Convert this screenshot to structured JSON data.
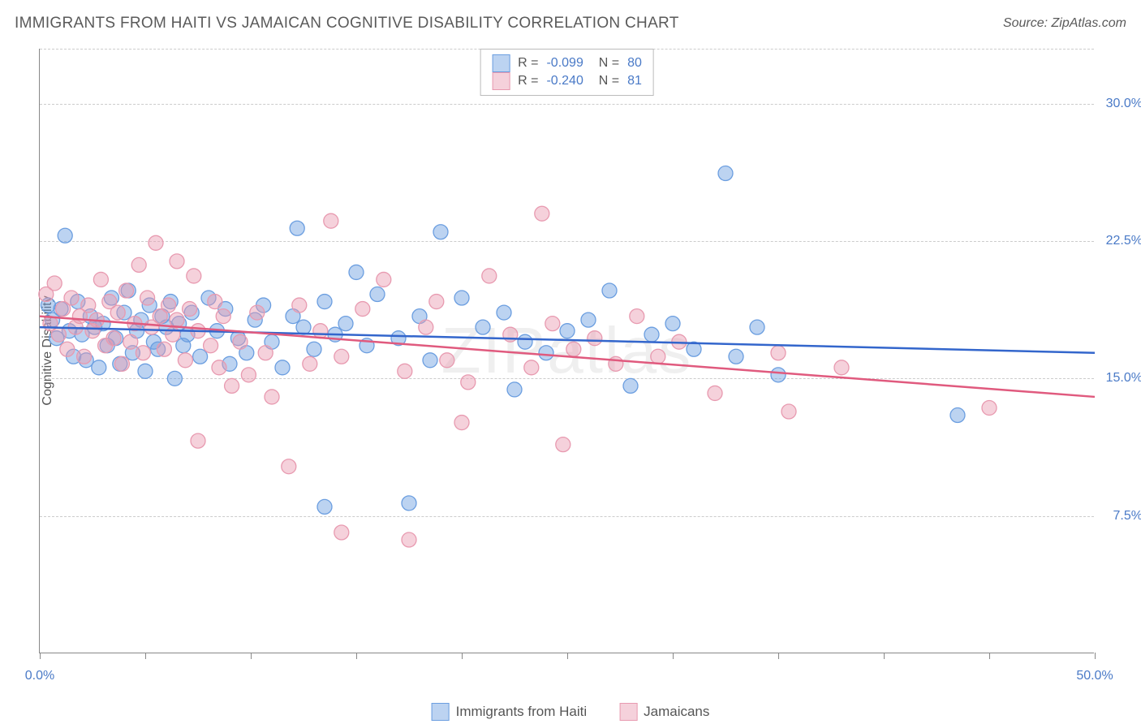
{
  "header": {
    "title": "IMMIGRANTS FROM HAITI VS JAMAICAN COGNITIVE DISABILITY CORRELATION CHART",
    "source": "Source: ZipAtlas.com"
  },
  "watermark": "ZIPatlas",
  "ylabel": "Cognitive Disability",
  "chart": {
    "type": "scatter-with-regression",
    "xlim": [
      0,
      50
    ],
    "ylim": [
      0,
      33
    ],
    "xtick_positions": [
      0,
      5,
      10,
      15,
      20,
      25,
      30,
      35,
      40,
      45,
      50
    ],
    "xtick_labels": {
      "0": "0.0%",
      "50": "50.0%"
    },
    "ytick_positions": [
      7.5,
      15.0,
      22.5,
      30.0
    ],
    "ytick_labels": [
      "7.5%",
      "15.0%",
      "22.5%",
      "30.0%"
    ],
    "background_color": "#ffffff",
    "grid_color": "#cccccc",
    "marker_radius": 9,
    "marker_opacity": 0.45,
    "line_width": 2.5,
    "series": [
      {
        "name": "Immigrants from Haiti",
        "color": "#6b9ee0",
        "fill": "rgba(107,158,224,0.45)",
        "stroke": "#6b9ee0",
        "line_color": "#3366cc",
        "R": "-0.099",
        "N": "80",
        "regression": {
          "y_at_x0": 17.8,
          "y_at_x50": 16.4
        },
        "points": [
          [
            0.4,
            19.0
          ],
          [
            0.6,
            18.2
          ],
          [
            0.8,
            17.2
          ],
          [
            1.0,
            18.8
          ],
          [
            1.2,
            22.8
          ],
          [
            1.4,
            17.6
          ],
          [
            1.6,
            16.2
          ],
          [
            1.8,
            19.2
          ],
          [
            2.0,
            17.4
          ],
          [
            2.2,
            16.0
          ],
          [
            2.4,
            18.4
          ],
          [
            2.6,
            17.8
          ],
          [
            2.8,
            15.6
          ],
          [
            3.0,
            18.0
          ],
          [
            3.2,
            16.8
          ],
          [
            3.4,
            19.4
          ],
          [
            3.6,
            17.2
          ],
          [
            3.8,
            15.8
          ],
          [
            4.0,
            18.6
          ],
          [
            4.2,
            19.8
          ],
          [
            4.4,
            16.4
          ],
          [
            4.6,
            17.6
          ],
          [
            4.8,
            18.2
          ],
          [
            5.0,
            15.4
          ],
          [
            5.2,
            19.0
          ],
          [
            5.4,
            17.0
          ],
          [
            5.6,
            16.6
          ],
          [
            5.8,
            18.4
          ],
          [
            6.0,
            17.8
          ],
          [
            6.2,
            19.2
          ],
          [
            6.4,
            15.0
          ],
          [
            6.6,
            18.0
          ],
          [
            6.8,
            16.8
          ],
          [
            7.0,
            17.4
          ],
          [
            7.2,
            18.6
          ],
          [
            7.6,
            16.2
          ],
          [
            8.0,
            19.4
          ],
          [
            8.4,
            17.6
          ],
          [
            8.8,
            18.8
          ],
          [
            9.0,
            15.8
          ],
          [
            9.4,
            17.2
          ],
          [
            9.8,
            16.4
          ],
          [
            10.2,
            18.2
          ],
          [
            10.6,
            19.0
          ],
          [
            11.0,
            17.0
          ],
          [
            11.5,
            15.6
          ],
          [
            12.0,
            18.4
          ],
          [
            12.2,
            23.2
          ],
          [
            12.5,
            17.8
          ],
          [
            13.0,
            16.6
          ],
          [
            13.5,
            19.2
          ],
          [
            13.5,
            8.0
          ],
          [
            14.0,
            17.4
          ],
          [
            14.5,
            18.0
          ],
          [
            15.0,
            20.8
          ],
          [
            15.5,
            16.8
          ],
          [
            16.0,
            19.6
          ],
          [
            17.0,
            17.2
          ],
          [
            17.5,
            8.2
          ],
          [
            18.0,
            18.4
          ],
          [
            18.5,
            16.0
          ],
          [
            19.0,
            23.0
          ],
          [
            20.0,
            19.4
          ],
          [
            21.0,
            17.8
          ],
          [
            22.0,
            18.6
          ],
          [
            22.5,
            14.4
          ],
          [
            23.0,
            17.0
          ],
          [
            24.0,
            16.4
          ],
          [
            25.0,
            17.6
          ],
          [
            26.0,
            18.2
          ],
          [
            27.0,
            19.8
          ],
          [
            28.0,
            14.6
          ],
          [
            29.0,
            17.4
          ],
          [
            30.0,
            18.0
          ],
          [
            31.0,
            16.6
          ],
          [
            32.5,
            26.2
          ],
          [
            33.0,
            16.2
          ],
          [
            34.0,
            17.8
          ],
          [
            43.5,
            13.0
          ],
          [
            35.0,
            15.2
          ]
        ]
      },
      {
        "name": "Jamaicans",
        "color": "#e89ab0",
        "fill": "rgba(232,154,176,0.45)",
        "stroke": "#e89ab0",
        "line_color": "#e05a7e",
        "R": "-0.240",
        "N": "81",
        "regression": {
          "y_at_x0": 18.4,
          "y_at_x50": 14.0
        },
        "points": [
          [
            0.3,
            19.6
          ],
          [
            0.5,
            18.0
          ],
          [
            0.7,
            20.2
          ],
          [
            0.9,
            17.4
          ],
          [
            1.1,
            18.8
          ],
          [
            1.3,
            16.6
          ],
          [
            1.5,
            19.4
          ],
          [
            1.7,
            17.8
          ],
          [
            1.9,
            18.4
          ],
          [
            2.1,
            16.2
          ],
          [
            2.3,
            19.0
          ],
          [
            2.5,
            17.6
          ],
          [
            2.7,
            18.2
          ],
          [
            2.9,
            20.4
          ],
          [
            3.1,
            16.8
          ],
          [
            3.3,
            19.2
          ],
          [
            3.5,
            17.2
          ],
          [
            3.7,
            18.6
          ],
          [
            3.9,
            15.8
          ],
          [
            4.1,
            19.8
          ],
          [
            4.3,
            17.0
          ],
          [
            4.5,
            18.0
          ],
          [
            4.7,
            21.2
          ],
          [
            4.9,
            16.4
          ],
          [
            5.1,
            19.4
          ],
          [
            5.3,
            17.8
          ],
          [
            5.5,
            22.4
          ],
          [
            5.7,
            18.4
          ],
          [
            5.9,
            16.6
          ],
          [
            6.1,
            19.0
          ],
          [
            6.3,
            17.4
          ],
          [
            6.5,
            18.2
          ],
          [
            6.5,
            21.4
          ],
          [
            6.9,
            16.0
          ],
          [
            7.1,
            18.8
          ],
          [
            7.3,
            20.6
          ],
          [
            7.5,
            17.6
          ],
          [
            7.5,
            11.6
          ],
          [
            8.1,
            16.8
          ],
          [
            8.3,
            19.2
          ],
          [
            8.5,
            15.6
          ],
          [
            8.7,
            18.4
          ],
          [
            9.1,
            14.6
          ],
          [
            9.5,
            17.0
          ],
          [
            9.9,
            15.2
          ],
          [
            10.3,
            18.6
          ],
          [
            10.7,
            16.4
          ],
          [
            11.0,
            14.0
          ],
          [
            11.8,
            10.2
          ],
          [
            12.3,
            19.0
          ],
          [
            12.8,
            15.8
          ],
          [
            13.3,
            17.6
          ],
          [
            13.8,
            23.6
          ],
          [
            14.3,
            16.2
          ],
          [
            14.3,
            6.6
          ],
          [
            15.3,
            18.8
          ],
          [
            16.3,
            20.4
          ],
          [
            17.3,
            15.4
          ],
          [
            17.5,
            6.2
          ],
          [
            18.3,
            17.8
          ],
          [
            18.8,
            19.2
          ],
          [
            19.3,
            16.0
          ],
          [
            20.0,
            12.6
          ],
          [
            20.3,
            14.8
          ],
          [
            21.3,
            20.6
          ],
          [
            22.3,
            17.4
          ],
          [
            23.3,
            15.6
          ],
          [
            23.8,
            24.0
          ],
          [
            24.3,
            18.0
          ],
          [
            24.8,
            11.4
          ],
          [
            25.3,
            16.6
          ],
          [
            26.3,
            17.2
          ],
          [
            27.3,
            15.8
          ],
          [
            28.3,
            18.4
          ],
          [
            29.3,
            16.2
          ],
          [
            30.3,
            17.0
          ],
          [
            35.0,
            16.4
          ],
          [
            35.5,
            13.2
          ],
          [
            38.0,
            15.6
          ],
          [
            45.0,
            13.4
          ],
          [
            32.0,
            14.2
          ]
        ]
      }
    ]
  },
  "bottom_legend": {
    "series1_label": "Immigrants from Haiti",
    "series2_label": "Jamaicans"
  }
}
